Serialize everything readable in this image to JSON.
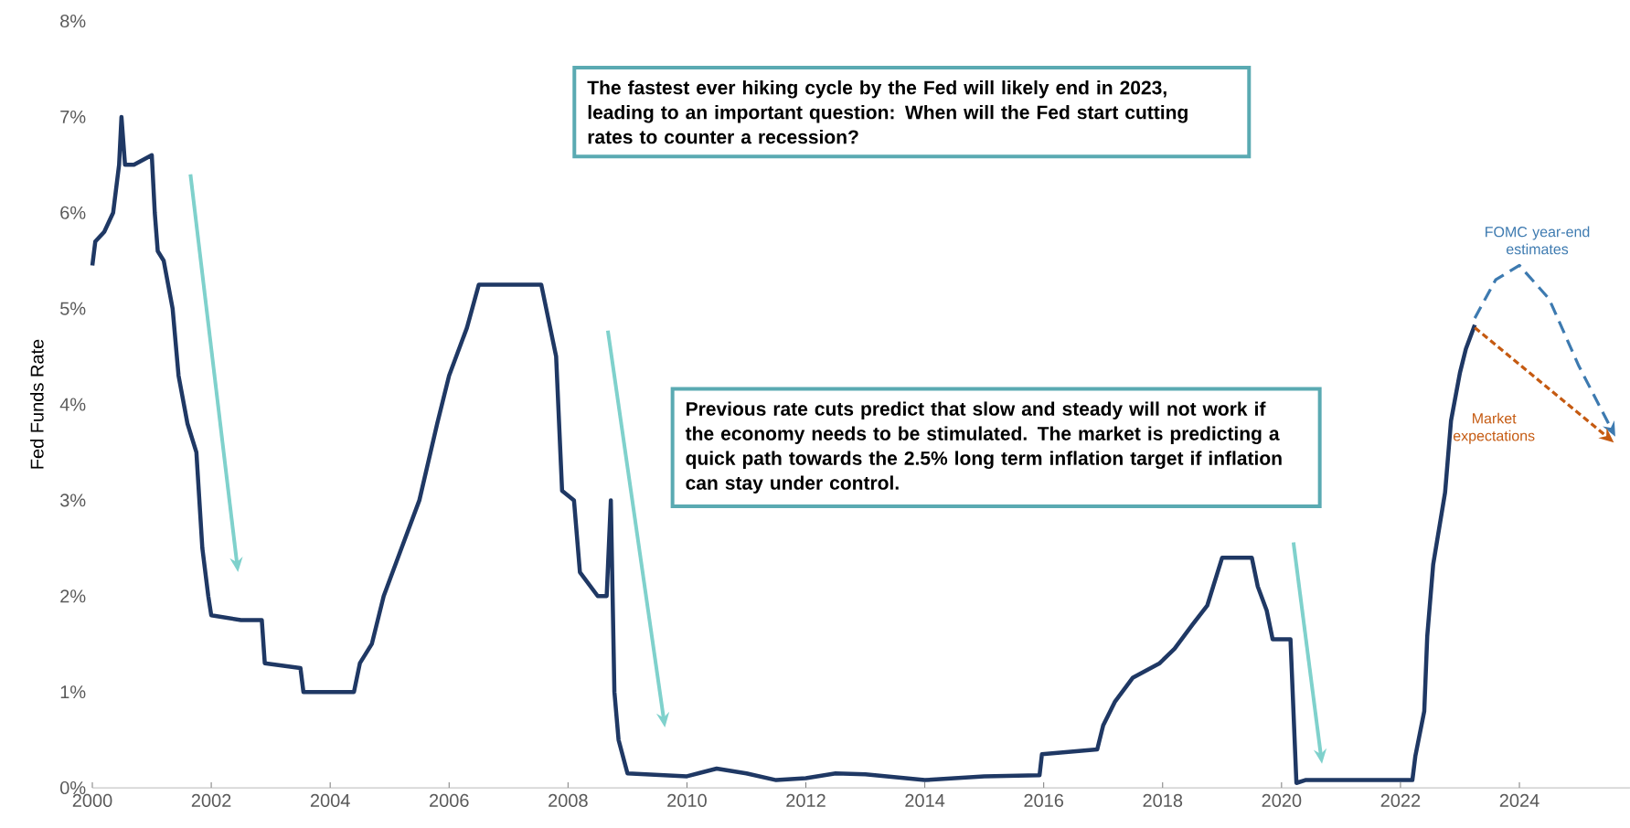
{
  "chart_data": {
    "type": "line",
    "ylabel": "Fed Funds Rate",
    "xlim": [
      2000,
      2025.86
    ],
    "ylim": [
      0,
      8
    ],
    "xticks": [
      2000,
      2002,
      2004,
      2006,
      2008,
      2010,
      2012,
      2014,
      2016,
      2018,
      2020,
      2022,
      2024
    ],
    "yticks": [
      {
        "value": 0,
        "label": "0%"
      },
      {
        "value": 1,
        "label": "1%"
      },
      {
        "value": 2,
        "label": "2%"
      },
      {
        "value": 3,
        "label": "3%"
      },
      {
        "value": 4,
        "label": "4%"
      },
      {
        "value": 5,
        "label": "5%"
      },
      {
        "value": 6,
        "label": "6%"
      },
      {
        "value": 7,
        "label": "7%"
      },
      {
        "value": 8,
        "label": "8%"
      }
    ],
    "annotations": [
      "The fastest ever hiking cycle by the Fed will likely end in 2023, leading to an important question: When will the Fed start cutting rates to counter a recession?",
      "Previous rate cuts predict that slow and steady will not work if the economy needs to be stimulated. The market is predicting a quick path towards the 2.5% long term inflation target if inflation can stay under control."
    ],
    "series": [
      {
        "color": "#1f3864",
        "line_style": "solid",
        "x": [
          2000.0,
          2000.05,
          2000.2,
          2000.35,
          2000.45,
          2000.49,
          2000.55,
          2000.7,
          2001.0,
          2001.05,
          2001.1,
          2001.2,
          2001.35,
          2001.45,
          2001.6,
          2001.75,
          2001.85,
          2001.95,
          2002.0,
          2002.5,
          2002.85,
          2002.9,
          2003.5,
          2003.55,
          2004.0,
          2004.4,
          2004.5,
          2004.7,
          2004.9,
          2005.2,
          2005.5,
          2005.8,
          2006.0,
          2006.3,
          2006.5,
          2007.0,
          2007.55,
          2007.7,
          2007.8,
          2007.9,
          2008.1,
          2008.2,
          2008.5,
          2008.65,
          2008.72,
          2008.78,
          2008.85,
          2009.0,
          2010.0,
          2010.5,
          2011.0,
          2011.5,
          2012.0,
          2012.5,
          2013.0,
          2014.0,
          2015.0,
          2015.93,
          2015.97,
          2016.9,
          2017.0,
          2017.2,
          2017.5,
          2017.95,
          2018.2,
          2018.5,
          2018.75,
          2019.0,
          2019.5,
          2019.6,
          2019.75,
          2019.85,
          2020.15,
          2020.18,
          2020.25,
          2020.4,
          2022.2,
          2022.25,
          2022.4,
          2022.45,
          2022.55,
          2022.75,
          2022.85,
          2023.0,
          2023.1,
          2023.25
        ],
        "values": [
          5.45,
          5.7,
          5.8,
          6.0,
          6.5,
          7.0,
          6.5,
          6.5,
          6.6,
          6.0,
          5.6,
          5.5,
          5.0,
          4.3,
          3.8,
          3.5,
          2.5,
          2.0,
          1.8,
          1.75,
          1.75,
          1.3,
          1.25,
          1.0,
          1.0,
          1.0,
          1.3,
          1.5,
          2.0,
          2.5,
          3.0,
          3.8,
          4.3,
          4.8,
          5.25,
          5.25,
          5.25,
          4.8,
          4.5,
          3.1,
          3.0,
          2.25,
          2.0,
          2.0,
          3.0,
          1.0,
          0.5,
          0.15,
          0.12,
          0.2,
          0.15,
          0.08,
          0.1,
          0.15,
          0.14,
          0.08,
          0.12,
          0.13,
          0.35,
          0.4,
          0.65,
          0.9,
          1.15,
          1.3,
          1.45,
          1.7,
          1.9,
          2.4,
          2.4,
          2.1,
          1.85,
          1.55,
          1.55,
          1.1,
          0.05,
          0.08,
          0.08,
          0.33,
          0.8,
          1.58,
          2.33,
          3.08,
          3.83,
          4.33,
          4.58,
          4.83
        ]
      },
      {
        "name": "FOMC year-end estimates",
        "color": "#3d7ab0",
        "line_style": "dashed",
        "x": [
          2023.25,
          2023.6,
          2024.0,
          2024.5,
          2025.0,
          2025.5
        ],
        "values": [
          4.9,
          5.3,
          5.45,
          5.1,
          4.4,
          3.8
        ]
      },
      {
        "name": "Market expectations",
        "color": "#c55a11",
        "line_style": "dotted",
        "x": [
          2023.25,
          2025.4
        ],
        "values": [
          4.8,
          3.7
        ]
      }
    ]
  }
}
